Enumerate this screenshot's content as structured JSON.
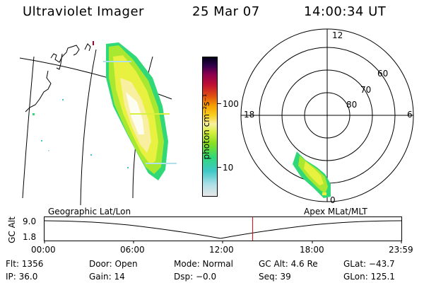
{
  "header": {
    "instrument": "Ultraviolet Imager",
    "date": "25 Mar 07",
    "time": "14:00:34 UT"
  },
  "colorbar": {
    "unit_label": "photon cm⁻²s⁻¹",
    "ticks": [
      {
        "label": "100",
        "value": 100
      },
      {
        "label": "10",
        "value": 10
      }
    ],
    "colors": [
      "#e8e8e8",
      "#b0e0e8",
      "#40c8c8",
      "#30d878",
      "#88e020",
      "#d8f040",
      "#f8f0a0",
      "#f8d020",
      "#f8a000",
      "#e05010",
      "#c01030",
      "#8a0050",
      "#30004a",
      "#000018"
    ]
  },
  "polar_plot": {
    "mlt_labels": {
      "top": "12",
      "left": "18",
      "right": "6",
      "bottom": "0"
    },
    "lat_labels": [
      "60",
      "70",
      "80"
    ]
  },
  "timeline": {
    "left_label": "Geographic Lat/Lon",
    "right_label": "Apex MLat/MLT",
    "y_axis_title": "GC Alt",
    "y_ticks": [
      "9.0",
      "1.8"
    ],
    "x_ticks": [
      "00:00",
      "06:00",
      "12:00",
      "18:00",
      "23:59"
    ],
    "marker_time_hours": 14.0,
    "marker_color": "#e00000"
  },
  "info": {
    "flt": "Flt: 1356",
    "door": "Door: Open",
    "mode": "Mode: Normal",
    "gc_alt": "GC Alt: 4.6 Re",
    "glat": "GLat: −43.7",
    "ip": "IP: 36.0",
    "gain": "Gain: 14",
    "dsp": "Dsp:  −0.0",
    "seq": "Seq: 39",
    "glon": "GLon: 125.1"
  }
}
